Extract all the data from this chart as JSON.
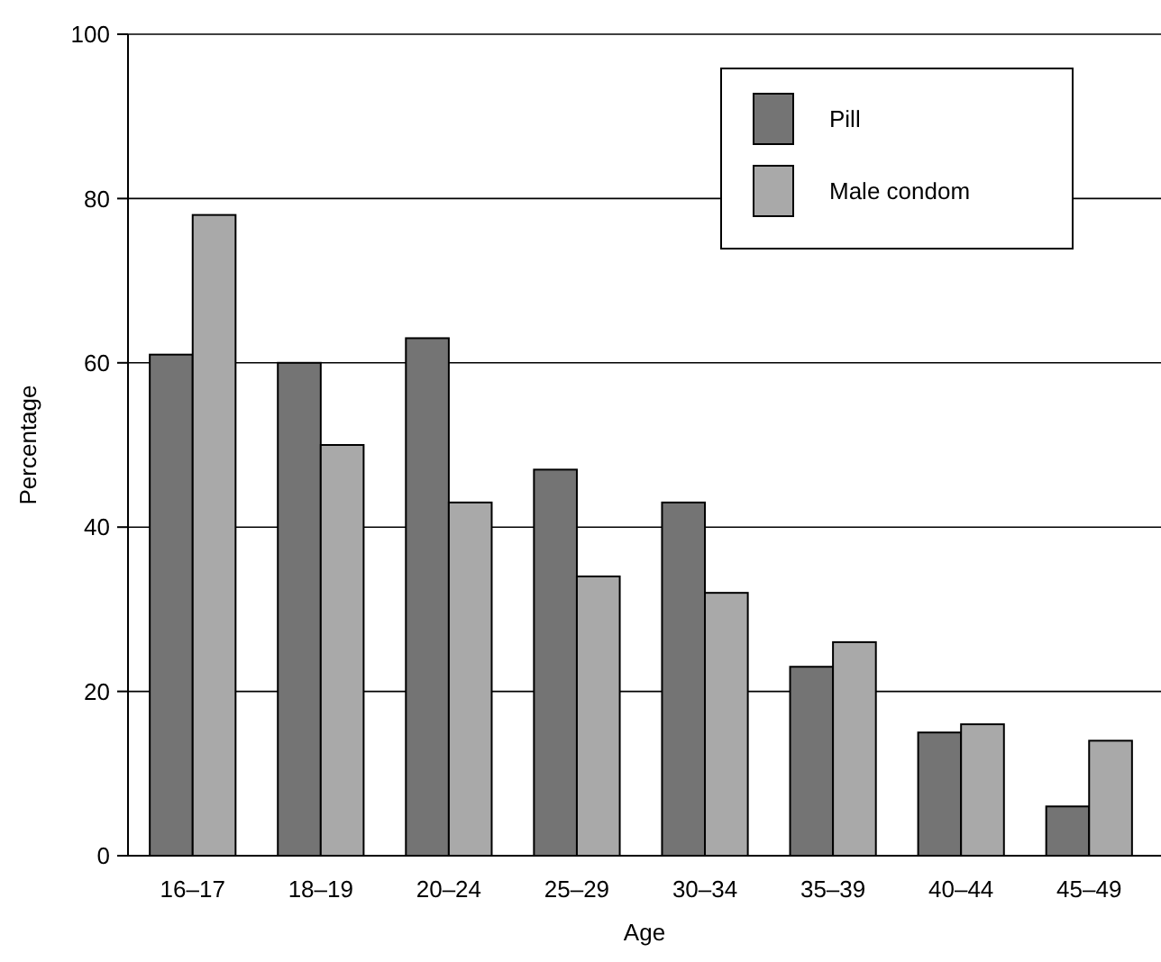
{
  "chart_data": {
    "type": "bar",
    "xlabel": "Age",
    "ylabel": "Percentage",
    "categories": [
      "16–17",
      "18–19",
      "20–24",
      "25–29",
      "30–34",
      "35–39",
      "40–44",
      "45–49"
    ],
    "series": [
      {
        "name": "Pill",
        "color": "#747474",
        "values": [
          61,
          60,
          63,
          47,
          43,
          23,
          15,
          6
        ]
      },
      {
        "name": "Male condom",
        "color": "#a9a9a9",
        "values": [
          78,
          50,
          43,
          34,
          32,
          26,
          16,
          14
        ]
      }
    ],
    "ylim": [
      0,
      100
    ],
    "yticks": [
      0,
      20,
      40,
      60,
      80,
      100
    ],
    "grid": "y",
    "legend": "top right"
  }
}
